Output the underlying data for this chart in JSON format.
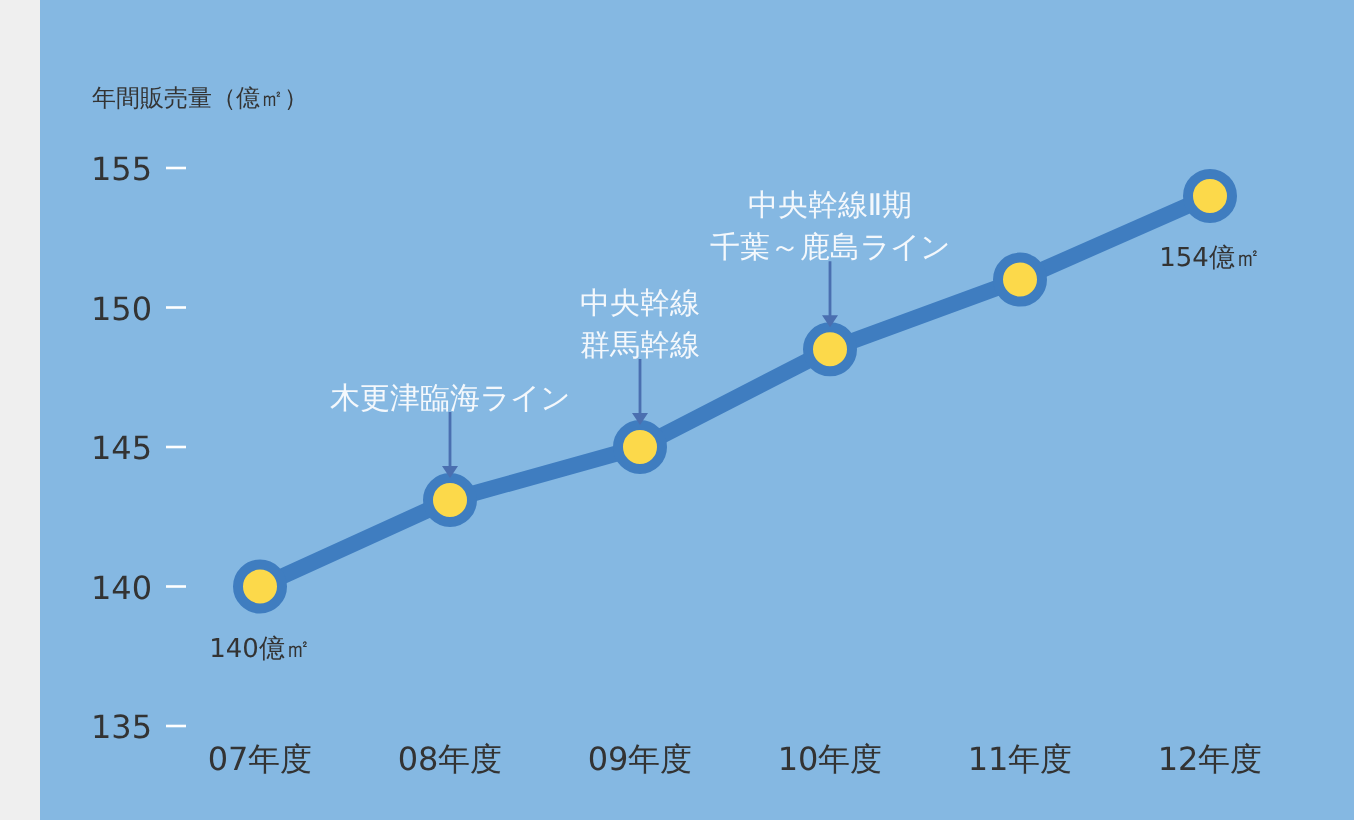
{
  "chart_data": {
    "type": "line",
    "ylabel": "年間販売量（億㎡）",
    "categories": [
      "07年度",
      "08年度",
      "09年度",
      "10年度",
      "11年度",
      "12年度"
    ],
    "series": [
      {
        "color": "#3f7dc0",
        "values": [
          140,
          143.1,
          145,
          148.5,
          151,
          154
        ],
        "value_labels": [
          "140億㎡",
          null,
          null,
          null,
          null,
          "154億㎡"
        ]
      }
    ],
    "ylim": [
      135,
      155
    ],
    "yticks": [
      135,
      140,
      145,
      150,
      155
    ],
    "marker": "circle",
    "annotations": [
      {
        "text": "木更津臨海ライン",
        "x": "08年度",
        "y": 143.1
      },
      "中央幹線",
      {
        "text": "群馬幹線",
        "x": "09年度",
        "y": 145
      },
      "中央幹線Ⅱ期",
      {
        "text": "千葉～鹿島ライン",
        "x": "10年度",
        "y": 148.5
      }
    ]
  }
}
